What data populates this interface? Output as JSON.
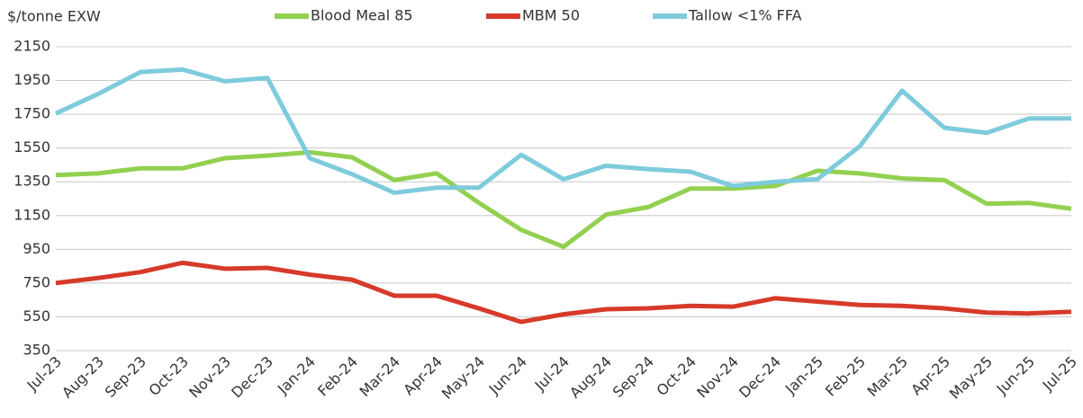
{
  "chart_data": {
    "type": "line",
    "y_label": "$/tonne EXW",
    "categories": [
      "Jul-23",
      "Aug-23",
      "Sep-23",
      "Oct-23",
      "Nov-23",
      "Dec-23",
      "Jan-24",
      "Feb-24",
      "Mar-24",
      "Apr-24",
      "May-24",
      "Jun-24",
      "Jul-24",
      "Aug-24",
      "Sep-24",
      "Oct-24",
      "Nov-24",
      "Dec-24",
      "Jan-25",
      "Feb-25",
      "Mar-25",
      "Apr-25",
      "May-25",
      "Jun-25",
      "Jul-25"
    ],
    "series": [
      {
        "name": "Blood Meal 85",
        "color": "#92d050",
        "values": [
          1390,
          1400,
          1430,
          1430,
          1490,
          1505,
          1525,
          1495,
          1360,
          1400,
          1225,
          1065,
          965,
          1155,
          1200,
          1310,
          1310,
          1325,
          1415,
          1400,
          1370,
          1360,
          1220,
          1225,
          1190
        ]
      },
      {
        "name": "MBM 50",
        "color": "#d63a2a",
        "values": [
          750,
          780,
          815,
          870,
          835,
          840,
          800,
          770,
          675,
          675,
          600,
          520,
          565,
          595,
          600,
          615,
          610,
          660,
          640,
          620,
          615,
          600,
          575,
          570,
          580
        ]
      },
      {
        "name": "Tallow <1% FFA",
        "color": "#7ecbdc",
        "values": [
          1755,
          1870,
          2000,
          2015,
          1945,
          1965,
          1490,
          1395,
          1285,
          1315,
          1315,
          1510,
          1365,
          1445,
          1425,
          1410,
          1325,
          1350,
          1365,
          1560,
          1890,
          1670,
          1640,
          1725,
          1725
        ]
      }
    ],
    "ylim": [
      350,
      2150
    ],
    "yticks": [
      350,
      550,
      750,
      950,
      1150,
      1350,
      1550,
      1750,
      1950,
      2150
    ],
    "grid": true,
    "legend": "top"
  }
}
